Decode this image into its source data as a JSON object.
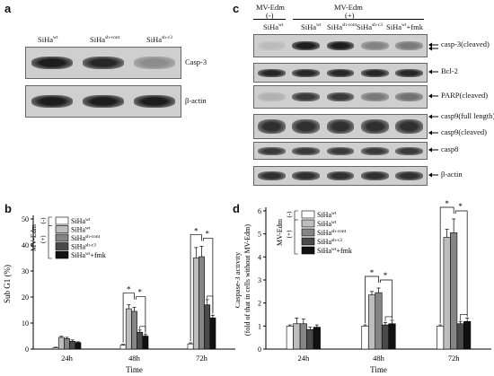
{
  "panel_a": {
    "label": "a",
    "lanes": [
      {
        "base": "SiHa",
        "sup": "wt"
      },
      {
        "base": "SiHa",
        "sup": "sh-cont"
      },
      {
        "base": "SiHa",
        "sup": "sh-c3"
      }
    ],
    "blots": [
      {
        "label": "Casp-3",
        "intensity": [
          0.95,
          0.9,
          0.35
        ]
      },
      {
        "label": "β-actin",
        "intensity": [
          0.95,
          0.95,
          0.95
        ]
      }
    ]
  },
  "panel_c": {
    "label": "c",
    "group_neg": {
      "title": "MV-Edm",
      "sign": "(-)"
    },
    "group_pos": {
      "title": "MV-Edm",
      "sign": "(+)"
    },
    "lanes": [
      {
        "base": "SiHa",
        "sup": "wt"
      },
      {
        "base": "SiHa",
        "sup": "wt"
      },
      {
        "base": "SiHa",
        "sup": "sh-cont"
      },
      {
        "base": "SiHa",
        "sup": "sh-c3"
      },
      {
        "base": "SiHa",
        "sup": "wt",
        "suffix": "+fmk"
      }
    ],
    "blots": [
      {
        "label": "casp-3(cleaved)",
        "intensity": [
          0.1,
          0.95,
          0.95,
          0.4,
          0.45
        ]
      },
      {
        "label": "Bcl-2",
        "intensity": [
          0.9,
          0.9,
          0.9,
          0.9,
          0.9
        ]
      },
      {
        "label": "PARP(cleaved)",
        "intensity": [
          0.15,
          0.8,
          0.8,
          0.45,
          0.5
        ]
      },
      {
        "label": "casp9(full length)",
        "label2": "casp9(cleaved)",
        "intensity": [
          0.85,
          0.85,
          0.85,
          0.85,
          0.85
        ]
      },
      {
        "label": "casp8",
        "intensity": [
          0.8,
          0.8,
          0.8,
          0.8,
          0.8
        ]
      },
      {
        "label": "β-actin",
        "intensity": [
          0.85,
          0.85,
          0.85,
          0.85,
          0.85
        ]
      }
    ]
  },
  "chart_data": [
    {
      "type": "bar",
      "panel": "b",
      "ylabel": "Sub G1 (%)",
      "xlabel": "Time",
      "categories": [
        "24h",
        "48h",
        "72h"
      ],
      "ylim": [
        0,
        50
      ],
      "yticks": [
        0,
        10,
        20,
        30,
        40,
        50
      ],
      "legend_group": "MV-Edm",
      "legend_signs": [
        "(-)",
        "(+)"
      ],
      "series": [
        {
          "name": "SiHa",
          "sup": "wt",
          "values": [
            0.5,
            1.5,
            2
          ],
          "err": [
            0.2,
            0.3,
            0.4
          ],
          "color": "#ffffff"
        },
        {
          "name": "SiHa",
          "sup": "wt",
          "values": [
            4.5,
            15.5,
            35
          ],
          "err": [
            0.4,
            1.5,
            4
          ],
          "color": "#bdbdbd"
        },
        {
          "name": "SiHa",
          "sup": "sh-cont",
          "values": [
            4,
            14.5,
            35.5
          ],
          "err": [
            0.5,
            1.5,
            4
          ],
          "color": "#858585"
        },
        {
          "name": "SiHa",
          "sup": "sh-c3",
          "values": [
            3,
            6.5,
            17
          ],
          "err": [
            0.5,
            0.8,
            2
          ],
          "color": "#4a4a4a"
        },
        {
          "name": "SiHa",
          "sup": "wt",
          "suffix": "+fmk",
          "values": [
            2.5,
            5,
            12
          ],
          "err": [
            0.3,
            0.6,
            1
          ],
          "color": "#111111"
        }
      ]
    },
    {
      "type": "bar",
      "panel": "d",
      "ylabel": "Caspase-3 activity",
      "ylabel2": "(fold of that in cells without MV-Edm)",
      "xlabel": "Time",
      "categories": [
        "24h",
        "48h",
        "72h"
      ],
      "ylim": [
        0,
        6
      ],
      "yticks": [
        0,
        1,
        2,
        3,
        4,
        5,
        6
      ],
      "legend_group": "MV-Edm",
      "legend_signs": [
        "(-)",
        "(+)"
      ],
      "series": [
        {
          "name": "SiHa",
          "sup": "wt",
          "values": [
            1,
            1,
            1
          ],
          "err": [
            0.05,
            0.05,
            0.05
          ],
          "color": "#ffffff"
        },
        {
          "name": "SiHa",
          "sup": "wt",
          "values": [
            1.1,
            2.35,
            4.85
          ],
          "err": [
            0.25,
            0.15,
            0.35
          ],
          "color": "#bdbdbd"
        },
        {
          "name": "SiHa",
          "sup": "sh-cont",
          "values": [
            1.1,
            2.45,
            5.05
          ],
          "err": [
            0.2,
            0.2,
            0.6
          ],
          "color": "#858585"
        },
        {
          "name": "SiHa",
          "sup": "sh-c3",
          "values": [
            0.85,
            1.05,
            1.1
          ],
          "err": [
            0.1,
            0.1,
            0.1
          ],
          "color": "#4a4a4a"
        },
        {
          "name": "SiHa",
          "sup": "wt",
          "suffix": "+fmk",
          "values": [
            0.95,
            1.1,
            1.2
          ],
          "err": [
            0.1,
            0.15,
            0.15
          ],
          "color": "#111111"
        }
      ]
    }
  ]
}
